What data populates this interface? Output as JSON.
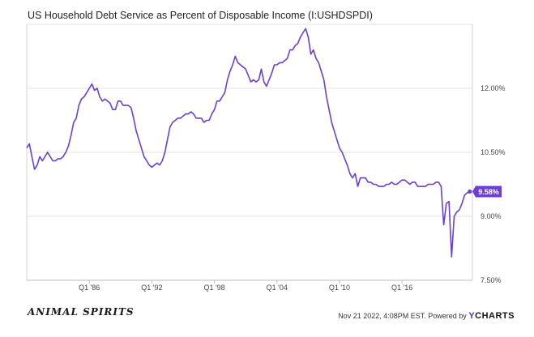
{
  "chart_data": {
    "type": "line",
    "title": "US Household Debt Service as Percent of Disposable Income (I:USHDSPDI)",
    "x_ticks": [
      "Q1 '86",
      "Q1 '92",
      "Q1 '98",
      "Q1 '04",
      "Q1 '10",
      "Q1 '16"
    ],
    "y_ticks": [
      "7.50%",
      "9.00%",
      "10.50%",
      "12.00%"
    ],
    "ylim": [
      7.5,
      13.5
    ],
    "xlim": [
      1980.0,
      2022.75
    ],
    "grid": "horizontal",
    "line_color": "#6b3fd4",
    "last_value_label": "9.58%",
    "series": [
      {
        "x": [
          1980.0,
          1980.25,
          1980.5,
          1980.75,
          1981.0,
          1981.25,
          1981.5,
          1981.75,
          1982.0,
          1982.25,
          1982.5,
          1982.75,
          1983.0,
          1983.25,
          1983.5,
          1983.75,
          1984.0,
          1984.25,
          1984.5,
          1984.75,
          1985.0,
          1985.25,
          1985.5,
          1985.75,
          1986.0,
          1986.25,
          1986.5,
          1986.75,
          1987.0,
          1987.25,
          1987.5,
          1987.75,
          1988.0,
          1988.25,
          1988.5,
          1988.75,
          1989.0,
          1989.25,
          1989.5,
          1989.75,
          1990.0,
          1990.25,
          1990.5,
          1990.75,
          1991.0,
          1991.25,
          1991.5,
          1991.75,
          1992.0,
          1992.25,
          1992.5,
          1992.75,
          1993.0,
          1993.25,
          1993.5,
          1993.75,
          1994.0,
          1994.25,
          1994.5,
          1994.75,
          1995.0,
          1995.25,
          1995.5,
          1995.75,
          1996.0,
          1996.25,
          1996.5,
          1996.75,
          1997.0,
          1997.25,
          1997.5,
          1997.75,
          1998.0,
          1998.25,
          1998.5,
          1998.75,
          1999.0,
          1999.25,
          1999.5,
          1999.75,
          2000.0,
          2000.25,
          2000.5,
          2000.75,
          2001.0,
          2001.25,
          2001.5,
          2001.75,
          2002.0,
          2002.25,
          2002.5,
          2002.75,
          2003.0,
          2003.25,
          2003.5,
          2003.75,
          2004.0,
          2004.25,
          2004.5,
          2004.75,
          2005.0,
          2005.25,
          2005.5,
          2005.75,
          2006.0,
          2006.25,
          2006.5,
          2006.75,
          2007.0,
          2007.25,
          2007.5,
          2007.75,
          2008.0,
          2008.25,
          2008.5,
          2008.75,
          2009.0,
          2009.25,
          2009.5,
          2009.75,
          2010.0,
          2010.25,
          2010.5,
          2010.75,
          2011.0,
          2011.25,
          2011.5,
          2011.75,
          2012.0,
          2012.25,
          2012.5,
          2012.75,
          2013.0,
          2013.25,
          2013.5,
          2013.75,
          2014.0,
          2014.25,
          2014.5,
          2014.75,
          2015.0,
          2015.25,
          2015.5,
          2015.75,
          2016.0,
          2016.25,
          2016.5,
          2016.75,
          2017.0,
          2017.25,
          2017.5,
          2017.75,
          2018.0,
          2018.25,
          2018.5,
          2018.75,
          2019.0,
          2019.25,
          2019.5,
          2019.75,
          2020.0,
          2020.25,
          2020.5,
          2020.75,
          2021.0,
          2021.25,
          2021.5,
          2021.75,
          2022.0,
          2022.25,
          2022.5
        ],
        "values": [
          10.6,
          10.7,
          10.4,
          10.1,
          10.2,
          10.4,
          10.3,
          10.4,
          10.5,
          10.4,
          10.3,
          10.3,
          10.35,
          10.35,
          10.4,
          10.5,
          10.65,
          10.9,
          11.2,
          11.3,
          11.6,
          11.75,
          11.8,
          11.9,
          12.0,
          12.1,
          11.95,
          12.0,
          11.8,
          11.7,
          11.75,
          11.7,
          11.65,
          11.5,
          11.5,
          11.7,
          11.7,
          11.6,
          11.6,
          11.6,
          11.55,
          11.3,
          11.0,
          10.8,
          10.6,
          10.4,
          10.3,
          10.2,
          10.15,
          10.2,
          10.25,
          10.2,
          10.3,
          10.5,
          10.8,
          11.1,
          11.2,
          11.25,
          11.3,
          11.3,
          11.35,
          11.4,
          11.4,
          11.45,
          11.4,
          11.3,
          11.3,
          11.3,
          11.2,
          11.25,
          11.25,
          11.4,
          11.5,
          11.7,
          11.7,
          11.8,
          11.9,
          12.2,
          12.4,
          12.55,
          12.75,
          12.6,
          12.55,
          12.5,
          12.45,
          12.3,
          12.15,
          12.2,
          12.15,
          12.2,
          12.45,
          12.15,
          12.05,
          12.2,
          12.35,
          12.55,
          12.55,
          12.6,
          12.6,
          12.65,
          12.7,
          12.9,
          12.9,
          13.0,
          13.05,
          13.2,
          13.3,
          13.4,
          13.2,
          12.8,
          12.9,
          12.7,
          12.6,
          12.4,
          12.2,
          11.8,
          11.5,
          11.2,
          11.0,
          10.8,
          10.6,
          10.5,
          10.35,
          10.2,
          10.0,
          9.9,
          10.0,
          9.7,
          9.9,
          9.9,
          9.9,
          9.8,
          9.8,
          9.75,
          9.75,
          9.7,
          9.7,
          9.7,
          9.75,
          9.75,
          9.8,
          9.75,
          9.75,
          9.8,
          9.85,
          9.85,
          9.8,
          9.75,
          9.8,
          9.8,
          9.7,
          9.7,
          9.7,
          9.7,
          9.75,
          9.75,
          9.75,
          9.8,
          9.8,
          9.7,
          8.8,
          9.3,
          9.35,
          8.05,
          9.0,
          9.1,
          9.15,
          9.3,
          9.5,
          9.55,
          9.58
        ]
      }
    ]
  },
  "footer": {
    "brand": "ANIMAL SPIRITS",
    "timestamp": "Nov 21 2022, 4:08PM EST.",
    "powered_by": "Powered by",
    "logo_y": "Y",
    "logo_rest": "CHARTS"
  }
}
